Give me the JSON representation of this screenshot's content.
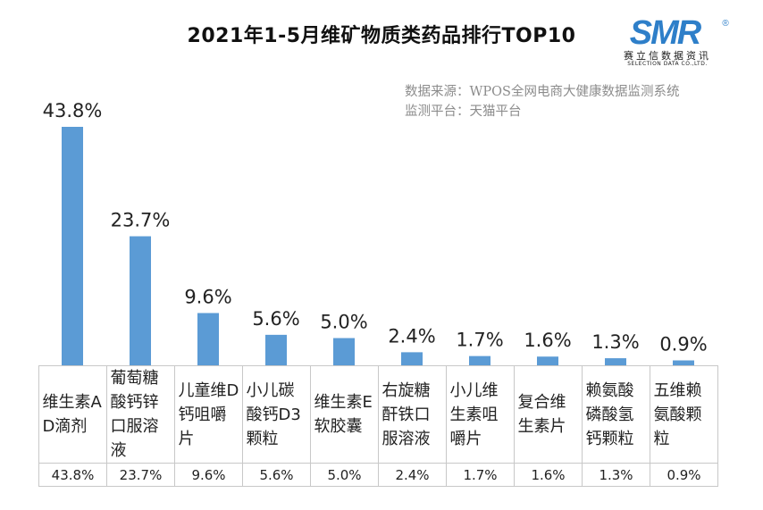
{
  "header": {
    "title": "2021年1-5月维矿物质类药品排行TOP10"
  },
  "logo": {
    "mark": "SMR",
    "registered": "®",
    "subtitle": "赛立信数据资讯",
    "english": "SELECTION DATA CO.,LTD.",
    "colors": {
      "primary": "#2e7fc9",
      "light": "#9cc6ea"
    }
  },
  "source": {
    "line1": "数据来源：WPOS全网电商大健康数据监测系统",
    "line2": "监测平台：天猫平台"
  },
  "colors": {
    "bar": "#5b9bd5",
    "label": "#222222"
  },
  "chart_data": {
    "type": "bar",
    "title": "2021年1-5月维矿物质类药品排行TOP10",
    "categories": [
      "维生素AD滴剂",
      "葡萄糖酸钙锌口服溶液",
      "儿童维D钙咀嚼片",
      "小儿碳酸钙D3颗粒",
      "维生素E软胶囊",
      "右旋糖酐铁口服溶液",
      "小儿维生素咀嚼片",
      "复合维生素片",
      "赖氨酸磷酸氢钙颗粒",
      "五维赖氨酸颗粒"
    ],
    "values": [
      43.8,
      23.7,
      9.6,
      5.6,
      5.0,
      2.4,
      1.7,
      1.6,
      1.3,
      0.9
    ],
    "data_labels": [
      "43.8%",
      "23.7%",
      "9.6%",
      "5.6%",
      "5.0%",
      "2.4%",
      "1.7%",
      "1.6%",
      "1.3%",
      "0.9%"
    ],
    "table_values": [
      "43.8%",
      "23.7%",
      "9.6%",
      "5.6%",
      "5.0%",
      "2.4%",
      "1.7%",
      "1.6%",
      "1.3%",
      "0.9%"
    ],
    "unit": "%",
    "ylim": [
      0,
      45
    ],
    "grid": false,
    "legend": "none"
  }
}
